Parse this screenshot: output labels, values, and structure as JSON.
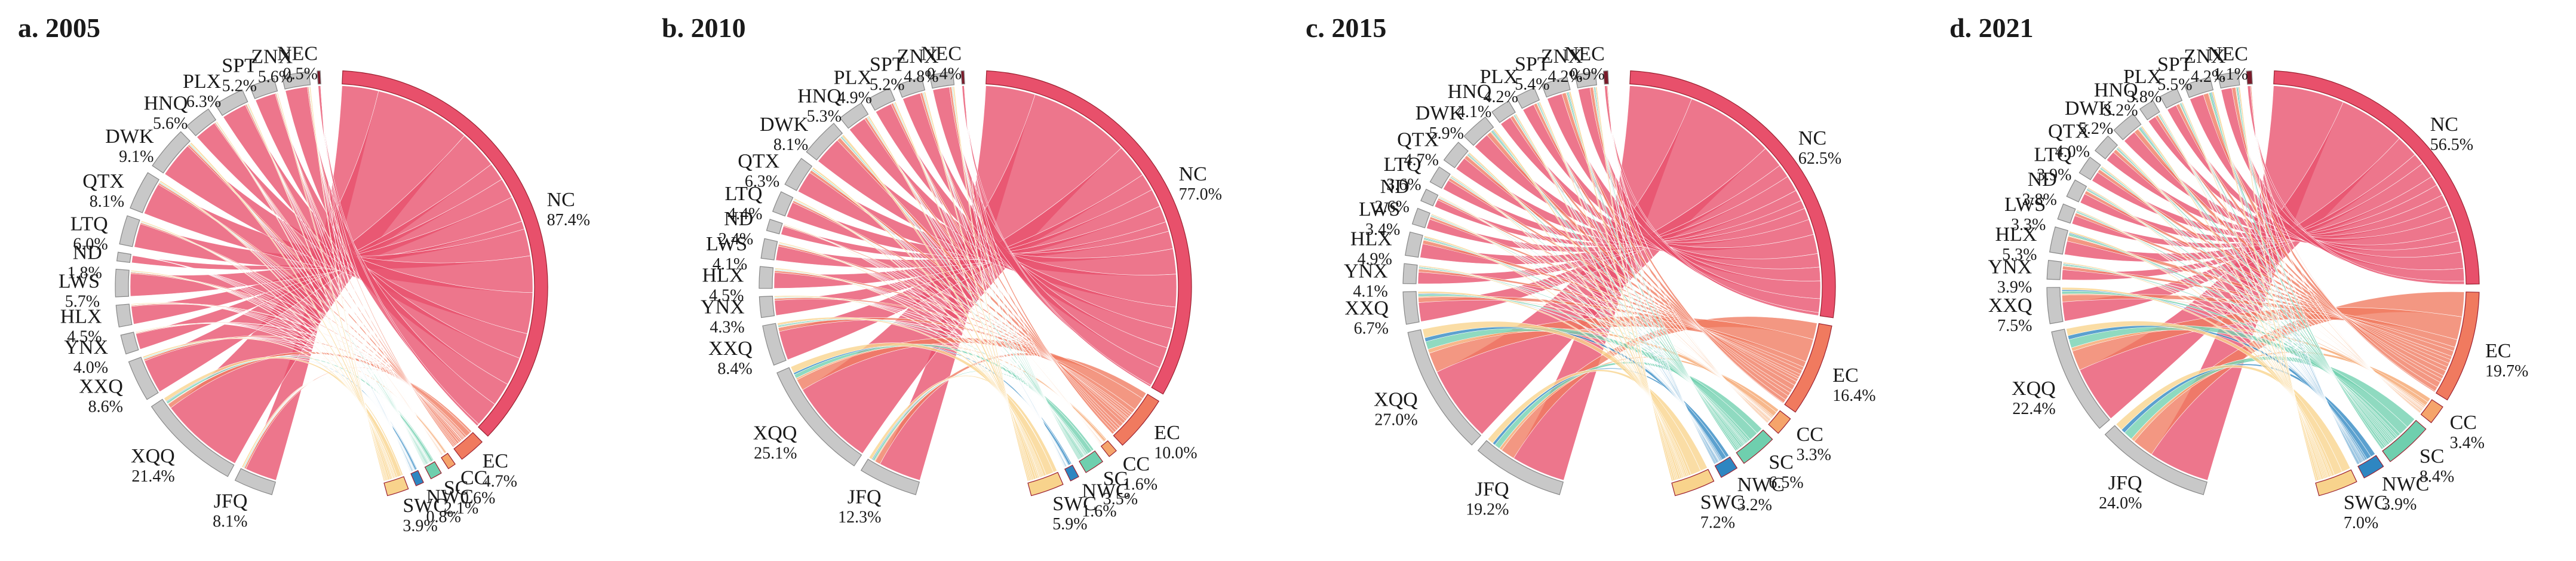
{
  "colors": {
    "NC": "#e8506b",
    "EC": "#f07a5f",
    "CC": "#f5a46b",
    "SC": "#6fcfae",
    "NWC": "#2e86c1",
    "SWC": "#f8d38c",
    "gray": "#c8c8c8",
    "NEC": "#7a1a2a"
  },
  "chart_data": [
    {
      "type": "chord",
      "title": "a. 2005",
      "segments": [
        {
          "name": "NC",
          "pct": "87.4%",
          "value": 87.4,
          "side": "right"
        },
        {
          "name": "EC",
          "pct": "4.7%",
          "value": 4.7,
          "side": "right"
        },
        {
          "name": "CC",
          "pct": "0.6%",
          "value": 0.6,
          "side": "right"
        },
        {
          "name": "SC",
          "pct": "2.1%",
          "value": 2.1,
          "side": "right"
        },
        {
          "name": "NWC",
          "pct": "0.8%",
          "value": 0.8,
          "side": "right"
        },
        {
          "name": "SWC",
          "pct": "3.9%",
          "value": 3.9,
          "side": "right"
        },
        {
          "name": "JFQ",
          "pct": "8.1%",
          "value": 8.1,
          "side": "left"
        },
        {
          "name": "XQQ",
          "pct": "21.4%",
          "value": 21.4,
          "side": "left"
        },
        {
          "name": "XXQ",
          "pct": "8.6%",
          "value": 8.6,
          "side": "left"
        },
        {
          "name": "YNX",
          "pct": "4.0%",
          "value": 4.0,
          "side": "left"
        },
        {
          "name": "HLX",
          "pct": "4.5%",
          "value": 4.5,
          "side": "left"
        },
        {
          "name": "LWS",
          "pct": "5.7%",
          "value": 5.7,
          "side": "left"
        },
        {
          "name": "ND",
          "pct": "1.8%",
          "value": 1.8,
          "side": "left"
        },
        {
          "name": "LTQ",
          "pct": "6.0%",
          "value": 6.0,
          "side": "left"
        },
        {
          "name": "QTX",
          "pct": "8.1%",
          "value": 8.1,
          "side": "left"
        },
        {
          "name": "DWK",
          "pct": "9.1%",
          "value": 9.1,
          "side": "left"
        },
        {
          "name": "HNQ",
          "pct": "5.6%",
          "value": 5.6,
          "side": "left"
        },
        {
          "name": "PLX",
          "pct": "6.3%",
          "value": 6.3,
          "side": "left"
        },
        {
          "name": "SPT",
          "pct": "5.2%",
          "value": 5.2,
          "side": "left"
        },
        {
          "name": "ZNX",
          "pct": "5.6%",
          "value": 5.6,
          "side": "left"
        },
        {
          "name": "NEC",
          "pct": "0.5%",
          "value": 0.5,
          "side": "left"
        }
      ]
    },
    {
      "type": "chord",
      "title": "b. 2010",
      "segments": [
        {
          "name": "NC",
          "pct": "77.0%",
          "value": 77.0,
          "side": "right"
        },
        {
          "name": "EC",
          "pct": "10.0%",
          "value": 10.0,
          "side": "right"
        },
        {
          "name": "CC",
          "pct": "1.6%",
          "value": 1.6,
          "side": "right"
        },
        {
          "name": "SC",
          "pct": "3.5%",
          "value": 3.5,
          "side": "right"
        },
        {
          "name": "NWC",
          "pct": "1.6%",
          "value": 1.6,
          "side": "right"
        },
        {
          "name": "SWC",
          "pct": "5.9%",
          "value": 5.9,
          "side": "right"
        },
        {
          "name": "JFQ",
          "pct": "12.3%",
          "value": 12.3,
          "side": "left"
        },
        {
          "name": "XQQ",
          "pct": "25.1%",
          "value": 25.1,
          "side": "left"
        },
        {
          "name": "XXQ",
          "pct": "8.4%",
          "value": 8.4,
          "side": "left"
        },
        {
          "name": "YNX",
          "pct": "4.3%",
          "value": 4.3,
          "side": "left"
        },
        {
          "name": "HLX",
          "pct": "4.5%",
          "value": 4.5,
          "side": "left"
        },
        {
          "name": "LWS",
          "pct": "4.1%",
          "value": 4.1,
          "side": "left"
        },
        {
          "name": "ND",
          "pct": "2.4%",
          "value": 2.4,
          "side": "left"
        },
        {
          "name": "LTQ",
          "pct": "4.4%",
          "value": 4.4,
          "side": "left"
        },
        {
          "name": "QTX",
          "pct": "6.3%",
          "value": 6.3,
          "side": "left"
        },
        {
          "name": "DWK",
          "pct": "8.1%",
          "value": 8.1,
          "side": "left"
        },
        {
          "name": "HNQ",
          "pct": "5.3%",
          "value": 5.3,
          "side": "left"
        },
        {
          "name": "PLX",
          "pct": "4.9%",
          "value": 4.9,
          "side": "left"
        },
        {
          "name": "SPT",
          "pct": "5.2%",
          "value": 5.2,
          "side": "left"
        },
        {
          "name": "ZNX",
          "pct": "4.8%",
          "value": 4.8,
          "side": "left"
        },
        {
          "name": "NEC",
          "pct": "0.4%",
          "value": 0.4,
          "side": "left"
        }
      ]
    },
    {
      "type": "chord",
      "title": "c. 2015",
      "segments": [
        {
          "name": "NC",
          "pct": "62.5%",
          "value": 62.5,
          "side": "right"
        },
        {
          "name": "EC",
          "pct": "16.4%",
          "value": 16.4,
          "side": "right"
        },
        {
          "name": "CC",
          "pct": "3.3%",
          "value": 3.3,
          "side": "right"
        },
        {
          "name": "SC",
          "pct": "6.5%",
          "value": 6.5,
          "side": "right"
        },
        {
          "name": "NWC",
          "pct": "3.2%",
          "value": 3.2,
          "side": "right"
        },
        {
          "name": "SWC",
          "pct": "7.2%",
          "value": 7.2,
          "side": "right"
        },
        {
          "name": "JFQ",
          "pct": "19.2%",
          "value": 19.2,
          "side": "left"
        },
        {
          "name": "XQQ",
          "pct": "27.0%",
          "value": 27.0,
          "side": "left"
        },
        {
          "name": "XXQ",
          "pct": "6.7%",
          "value": 6.7,
          "side": "left"
        },
        {
          "name": "YNX",
          "pct": "4.1%",
          "value": 4.1,
          "side": "left"
        },
        {
          "name": "HLX",
          "pct": "4.9%",
          "value": 4.9,
          "side": "left"
        },
        {
          "name": "LWS",
          "pct": "3.4%",
          "value": 3.4,
          "side": "left"
        },
        {
          "name": "ND",
          "pct": "2.6%",
          "value": 2.6,
          "side": "left"
        },
        {
          "name": "LTQ",
          "pct": "3.6%",
          "value": 3.6,
          "side": "left"
        },
        {
          "name": "QTX",
          "pct": "4.7%",
          "value": 4.7,
          "side": "left"
        },
        {
          "name": "DWK",
          "pct": "5.9%",
          "value": 5.9,
          "side": "left"
        },
        {
          "name": "HNQ",
          "pct": "4.1%",
          "value": 4.1,
          "side": "left"
        },
        {
          "name": "PLX",
          "pct": "4.2%",
          "value": 4.2,
          "side": "left"
        },
        {
          "name": "SPT",
          "pct": "5.4%",
          "value": 5.4,
          "side": "left"
        },
        {
          "name": "ZNX",
          "pct": "4.2%",
          "value": 4.2,
          "side": "left"
        },
        {
          "name": "NEC",
          "pct": "0.9%",
          "value": 0.9,
          "side": "left"
        }
      ]
    },
    {
      "type": "chord",
      "title": "d. 2021",
      "segments": [
        {
          "name": "NC",
          "pct": "56.5%",
          "value": 56.5,
          "side": "right"
        },
        {
          "name": "EC",
          "pct": "19.7%",
          "value": 19.7,
          "side": "right"
        },
        {
          "name": "CC",
          "pct": "3.4%",
          "value": 3.4,
          "side": "right"
        },
        {
          "name": "SC",
          "pct": "8.4%",
          "value": 8.4,
          "side": "right"
        },
        {
          "name": "NWC",
          "pct": "3.9%",
          "value": 3.9,
          "side": "right"
        },
        {
          "name": "SWC",
          "pct": "7.0%",
          "value": 7.0,
          "side": "right"
        },
        {
          "name": "JFQ",
          "pct": "24.0%",
          "value": 24.0,
          "side": "left"
        },
        {
          "name": "XQQ",
          "pct": "22.4%",
          "value": 22.4,
          "side": "left"
        },
        {
          "name": "XXQ",
          "pct": "7.5%",
          "value": 7.5,
          "side": "left"
        },
        {
          "name": "YNX",
          "pct": "3.9%",
          "value": 3.9,
          "side": "left"
        },
        {
          "name": "HLX",
          "pct": "5.3%",
          "value": 5.3,
          "side": "left"
        },
        {
          "name": "LWS",
          "pct": "3.3%",
          "value": 3.3,
          "side": "left"
        },
        {
          "name": "ND",
          "pct": "3.8%",
          "value": 3.8,
          "side": "left"
        },
        {
          "name": "LTQ",
          "pct": "3.9%",
          "value": 3.9,
          "side": "left"
        },
        {
          "name": "QTX",
          "pct": "4.0%",
          "value": 4.0,
          "side": "left"
        },
        {
          "name": "DWK",
          "pct": "5.2%",
          "value": 5.2,
          "side": "left"
        },
        {
          "name": "HNQ",
          "pct": "3.2%",
          "value": 3.2,
          "side": "left"
        },
        {
          "name": "PLX",
          "pct": "3.8%",
          "value": 3.8,
          "side": "left"
        },
        {
          "name": "SPT",
          "pct": "5.5%",
          "value": 5.5,
          "side": "left"
        },
        {
          "name": "ZNX",
          "pct": "4.2%",
          "value": 4.2,
          "side": "left"
        },
        {
          "name": "NEC",
          "pct": "1.1%",
          "value": 1.1,
          "side": "left"
        }
      ]
    }
  ]
}
